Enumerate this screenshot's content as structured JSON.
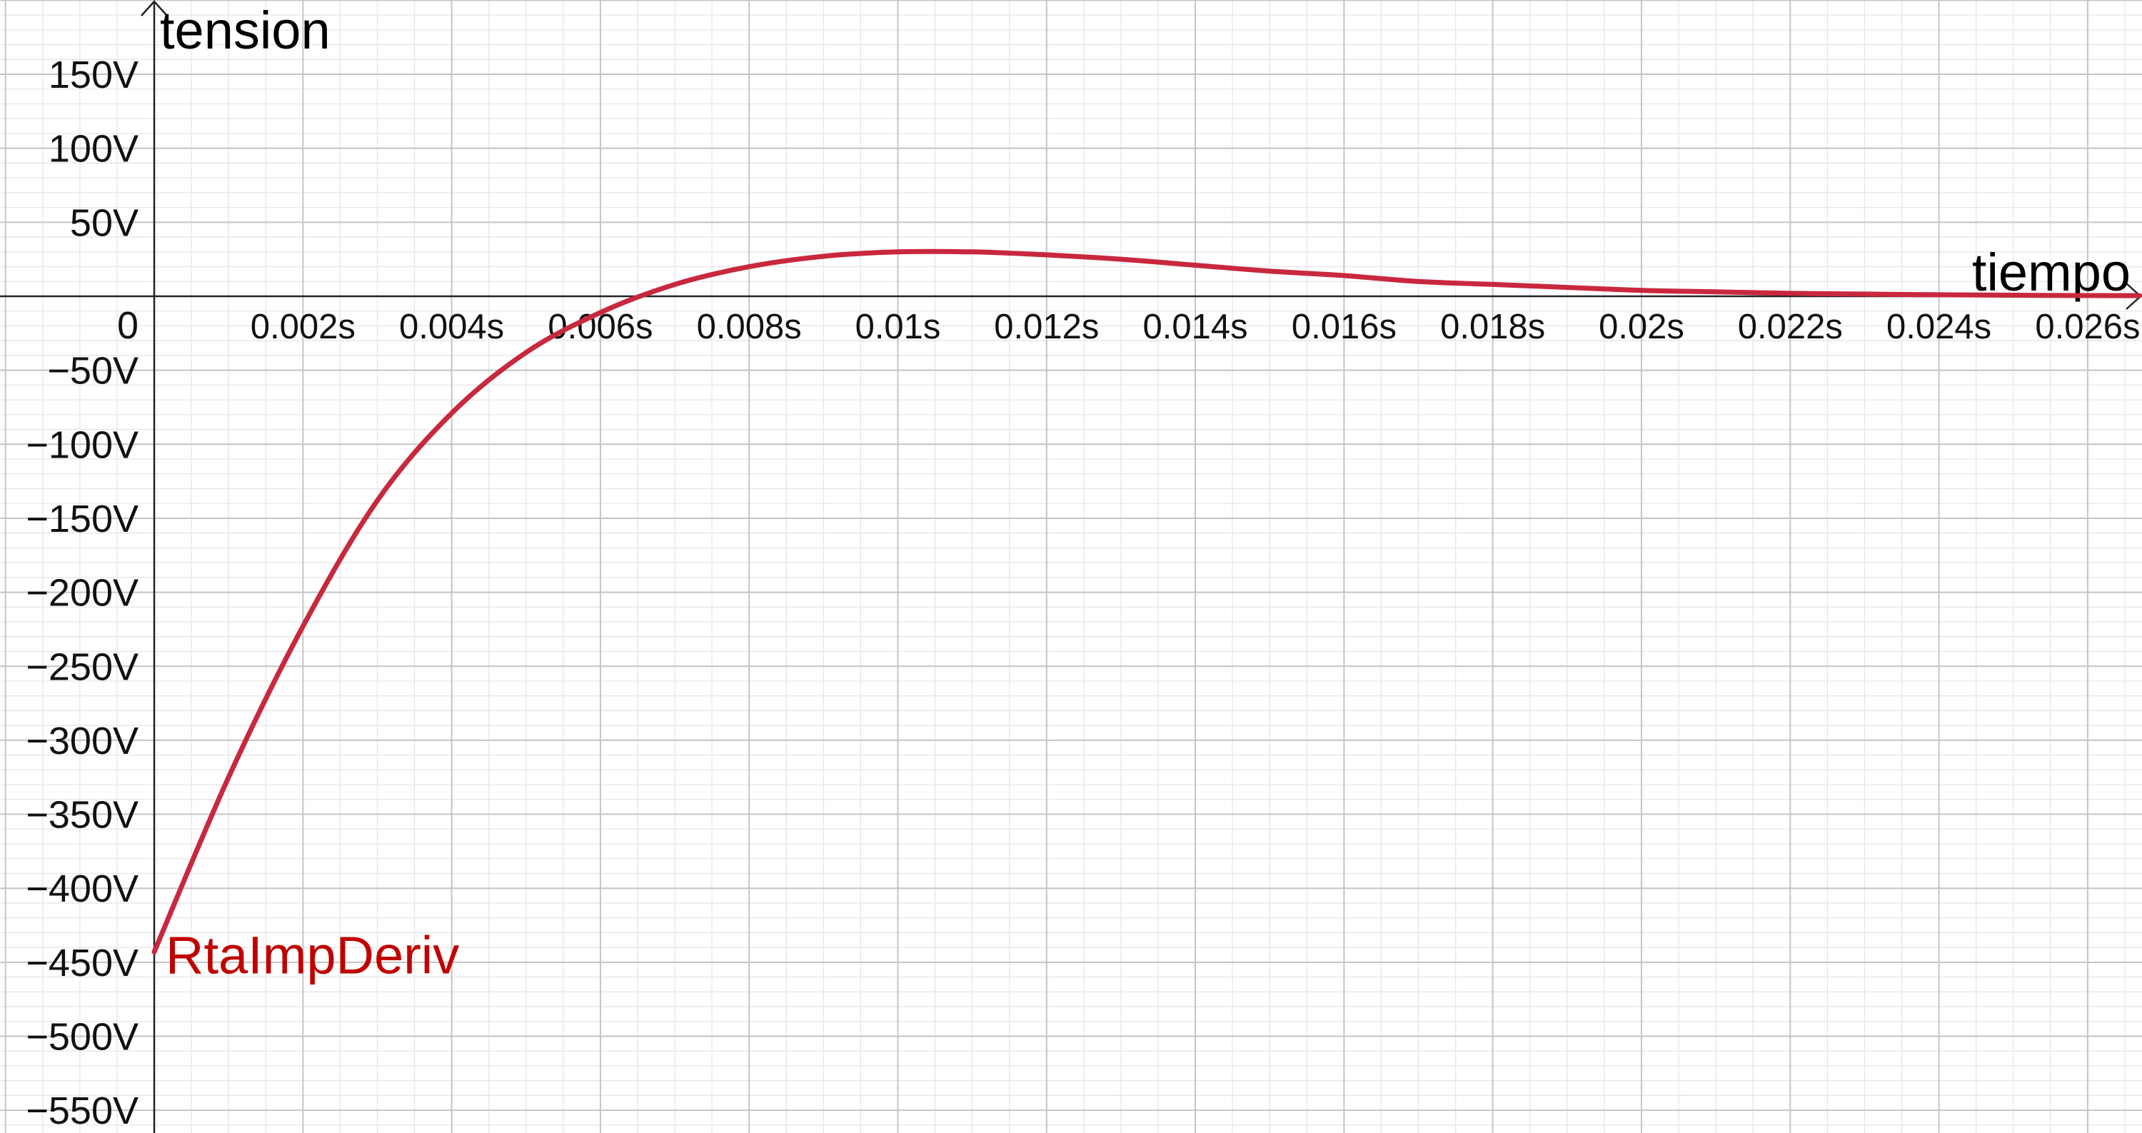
{
  "chart_data": {
    "type": "line",
    "title": "",
    "xlabel": "tiempo",
    "ylabel": "tension",
    "xlim": [
      0,
      0.0267
    ],
    "ylim": [
      -565,
      195
    ],
    "grid": true,
    "x_major_step": 0.002,
    "y_major_step": 50,
    "x_ticks": [
      {
        "value": 0.002,
        "label": "0.002s"
      },
      {
        "value": 0.004,
        "label": "0.004s"
      },
      {
        "value": 0.006,
        "label": "0.006s"
      },
      {
        "value": 0.008,
        "label": "0.008s"
      },
      {
        "value": 0.01,
        "label": "0.01s"
      },
      {
        "value": 0.012,
        "label": "0.012s"
      },
      {
        "value": 0.014,
        "label": "0.014s"
      },
      {
        "value": 0.016,
        "label": "0.016s"
      },
      {
        "value": 0.018,
        "label": "0.018s"
      },
      {
        "value": 0.02,
        "label": "0.02s"
      },
      {
        "value": 0.022,
        "label": "0.022s"
      },
      {
        "value": 0.024,
        "label": "0.024s"
      },
      {
        "value": 0.026,
        "label": "0.026s"
      }
    ],
    "y_ticks": [
      {
        "value": 150,
        "label": "150V"
      },
      {
        "value": 100,
        "label": "100V"
      },
      {
        "value": 50,
        "label": "50V"
      },
      {
        "value": 0,
        "label": "0"
      },
      {
        "value": -50,
        "label": "−50V"
      },
      {
        "value": -100,
        "label": "−100V"
      },
      {
        "value": -150,
        "label": "−150V"
      },
      {
        "value": -200,
        "label": "−200V"
      },
      {
        "value": -250,
        "label": "−250V"
      },
      {
        "value": -300,
        "label": "−300V"
      },
      {
        "value": -350,
        "label": "−350V"
      },
      {
        "value": -400,
        "label": "−400V"
      },
      {
        "value": -450,
        "label": "−450V"
      },
      {
        "value": -500,
        "label": "−500V"
      },
      {
        "value": -550,
        "label": "−550V"
      }
    ],
    "series": [
      {
        "name": "RtaImpDeriv",
        "color": "#c8283e",
        "x": [
          0,
          0.001,
          0.002,
          0.003,
          0.004,
          0.005,
          0.006,
          0.007,
          0.008,
          0.009,
          0.01,
          0.011,
          0.012,
          0.013,
          0.014,
          0.015,
          0.016,
          0.017,
          0.018,
          0.019,
          0.02,
          0.021,
          0.022,
          0.023,
          0.024,
          0.025,
          0.026,
          0.0267
        ],
        "y": [
          -443,
          -325,
          -223,
          -138,
          -79,
          -38,
          -11,
          8,
          20,
          27,
          30,
          30,
          28,
          25,
          21,
          17,
          14,
          10,
          8,
          6,
          4,
          3,
          2,
          1.5,
          1,
          0.7,
          0.5,
          0.4
        ]
      }
    ],
    "label_color": "#c00000"
  }
}
